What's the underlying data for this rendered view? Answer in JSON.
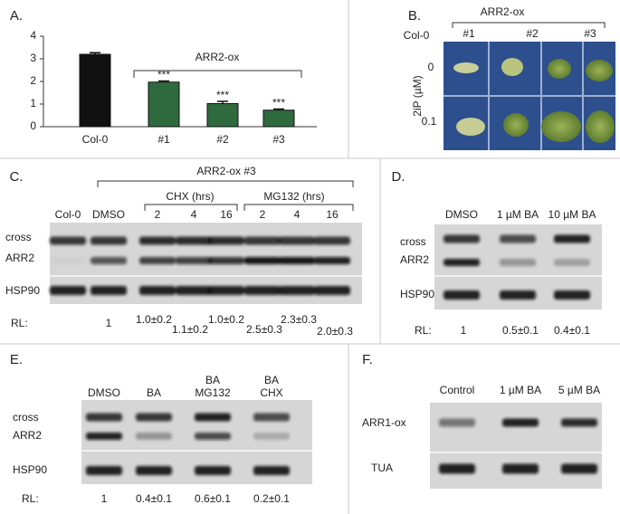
{
  "chart_data": {
    "type": "bar",
    "categories": [
      "Col-0",
      "#1",
      "#2",
      "#3"
    ],
    "values": [
      3.2,
      1.97,
      1.02,
      0.73
    ],
    "errors": [
      0.07,
      0.05,
      0.1,
      0.05
    ],
    "colors": [
      "#111111",
      "#2f6a3f",
      "#2f6a3f",
      "#2f6a3f"
    ],
    "ylim": [
      0,
      4
    ],
    "yticks": [
      0,
      1,
      2,
      3,
      4
    ],
    "significance": [
      "***",
      "***",
      "***"
    ],
    "bracket_label": "ARR2-ox"
  },
  "panels": {
    "A": {
      "label": "A."
    },
    "B": {
      "label": "B.",
      "control": "Col-0",
      "header": "ARR2-ox",
      "lines": [
        "#1",
        "#2",
        "#3"
      ],
      "axis_label": "2iP (µM)",
      "doses": [
        "0",
        "0.1"
      ]
    },
    "C": {
      "label": "C.",
      "header": "ARR2-ox #3",
      "groups": [
        "CHX (hrs)",
        "MG132 (hrs)"
      ],
      "lanes": [
        "Col-0",
        "DMSO",
        "2",
        "4",
        "16",
        "2",
        "4",
        "16"
      ],
      "rows": [
        "cross",
        "ARR2",
        "HSP90"
      ],
      "rl_label": "RL:",
      "rl": [
        "1",
        "1.0±0.2",
        "1.1±0.2",
        "1.0±0.2",
        "2.5±0.3",
        "2.3±0.3",
        "2.0±0.3"
      ]
    },
    "D": {
      "label": "D.",
      "lanes": [
        "DMSO",
        "1 µM BA",
        "10 µM BA"
      ],
      "rows": [
        "cross",
        "ARR2",
        "HSP90"
      ],
      "rl_label": "RL:",
      "rl": [
        "1",
        "0.5±0.1",
        "0.4±0.1"
      ]
    },
    "E": {
      "label": "E.",
      "lanes": [
        [
          "DMSO"
        ],
        [
          "BA"
        ],
        [
          "BA",
          "MG132"
        ],
        [
          "BA",
          "CHX"
        ]
      ],
      "rows": [
        "cross",
        "ARR2",
        "HSP90"
      ],
      "rl_label": "RL:",
      "rl": [
        "1",
        "0.4±0.1",
        "0.6±0.1",
        "0.2±0.1"
      ]
    },
    "F": {
      "label": "F.",
      "lanes": [
        "Control",
        "1 µM BA",
        "5 µM BA"
      ],
      "rows": [
        "ARR1-ox",
        "TUA"
      ]
    }
  }
}
